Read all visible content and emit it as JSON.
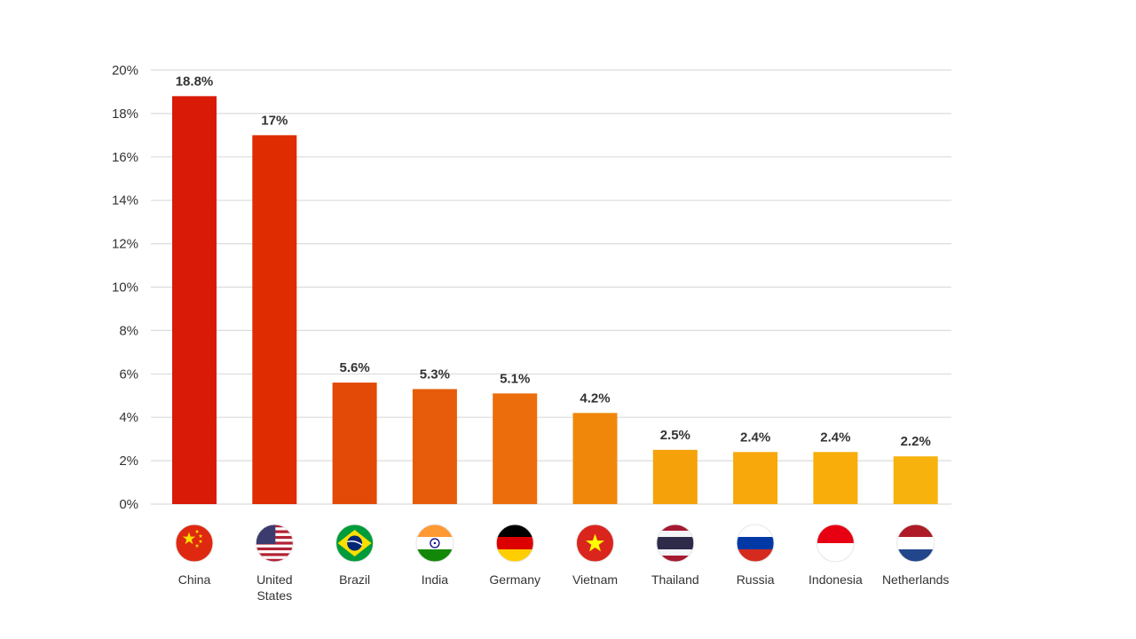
{
  "chart_data": {
    "type": "bar",
    "categories": [
      "China",
      "United States",
      "Brazil",
      "India",
      "Germany",
      "Vietnam",
      "Thailand",
      "Russia",
      "Indonesia",
      "Netherlands"
    ],
    "category_lines": [
      [
        "China"
      ],
      [
        "United",
        "States"
      ],
      [
        "Brazil"
      ],
      [
        "India"
      ],
      [
        "Germany"
      ],
      [
        "Vietnam"
      ],
      [
        "Thailand"
      ],
      [
        "Russia"
      ],
      [
        "Indonesia"
      ],
      [
        "Netherlands"
      ]
    ],
    "values": [
      18.8,
      17,
      5.6,
      5.3,
      5.1,
      4.2,
      2.5,
      2.4,
      2.4,
      2.2
    ],
    "value_labels": [
      "18.8%",
      "17%",
      "5.6%",
      "5.3%",
      "5.1%",
      "4.2%",
      "2.5%",
      "2.4%",
      "2.4%",
      "2.2%"
    ],
    "ylim": [
      0,
      20
    ],
    "yticks": [
      0,
      2,
      4,
      6,
      8,
      10,
      12,
      14,
      16,
      18,
      20
    ],
    "ytick_labels": [
      "0%",
      "2%",
      "4%",
      "6%",
      "8%",
      "10%",
      "12%",
      "14%",
      "16%",
      "18%",
      "20%"
    ],
    "grid": true,
    "bar_colors": [
      "#d91a06",
      "#df2c00",
      "#e34a07",
      "#e65c0a",
      "#ec6d0c",
      "#f0870b",
      "#f5a20a",
      "#f8a80a",
      "#f8ad0a",
      "#f8b20e"
    ],
    "category_icons": [
      "china-flag-icon",
      "united-states-flag-icon",
      "brazil-flag-icon",
      "india-flag-icon",
      "germany-flag-icon",
      "vietnam-flag-icon",
      "thailand-flag-icon",
      "russia-flag-icon",
      "indonesia-flag-icon",
      "netherlands-flag-icon"
    ],
    "title": "",
    "xlabel": "",
    "ylabel": ""
  }
}
